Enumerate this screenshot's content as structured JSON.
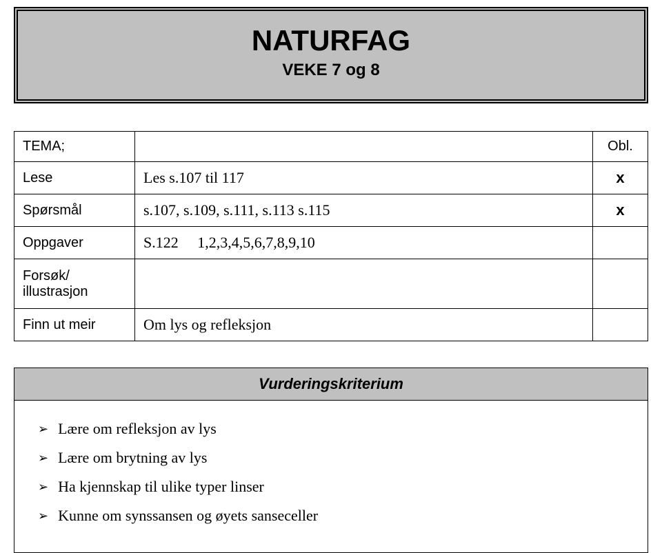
{
  "header": {
    "title": "NATURFAG",
    "subtitle": "VEKE 7 og 8"
  },
  "mainTable": {
    "oblHeader": "Obl.",
    "rows": [
      {
        "label": "TEMA;",
        "content": "",
        "mark": "",
        "isTemaRow": true
      },
      {
        "label": "Lese",
        "content": "Les s.107 til 117",
        "mark": "x"
      },
      {
        "label": "Spørsmål",
        "content": "s.107, s.109, s.111, s.113 s.115",
        "mark": "x"
      },
      {
        "label": "Oppgaver",
        "content": "S.122     1,2,3,4,5,6,7,8,9,10",
        "mark": ""
      },
      {
        "label": "Forsøk/ illustrasjon",
        "content": "",
        "mark": "",
        "tall": true
      },
      {
        "label": "Finn ut meir",
        "content": "Om lys og refleksjon",
        "mark": ""
      }
    ]
  },
  "criteria": {
    "header": "Vurderingskriterium",
    "items": [
      "Lære om refleksjon av lys",
      "Lære om brytning av lys",
      "Ha kjennskap til ulike typer linser",
      "Kunne om synssansen og øyets sanseceller"
    ]
  },
  "colors": {
    "headerBg": "#c1c0c0",
    "border": "#000000",
    "pageBg": "#ffffff",
    "text": "#000000"
  },
  "typography": {
    "titleFont": "Comic Sans MS",
    "contentFont": "Georgia",
    "titleSize": 42,
    "subtitleSize": 24,
    "labelSize": 20,
    "contentSize": 22
  }
}
